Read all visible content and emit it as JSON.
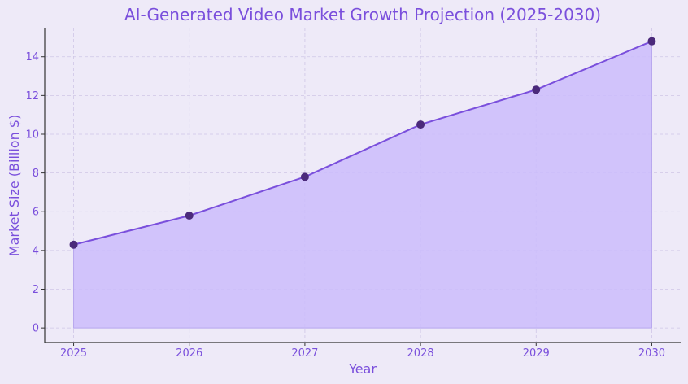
{
  "chart_data": {
    "type": "area",
    "title": "AI-Generated Video Market Growth Projection (2025-2030)",
    "xlabel": "Year",
    "ylabel": "Market Size (Billion $)",
    "x": [
      "2025",
      "2026",
      "2027",
      "2028",
      "2029",
      "2030"
    ],
    "series": [
      {
        "values": [
          4.3,
          5.8,
          7.8,
          10.5,
          12.3,
          14.8
        ]
      }
    ],
    "xlim": [
      2024.75,
      2030.25
    ],
    "ylim": [
      -0.75,
      15.5
    ],
    "yticks": [
      0,
      2,
      4,
      6,
      8,
      10,
      12,
      14
    ],
    "grid": true,
    "colors": {
      "line": "#7a4fdc",
      "fill": "#cbbcfb",
      "marker": "#4b2a7b",
      "background": "#eeeaf8",
      "text": "#7a4fdc"
    }
  }
}
